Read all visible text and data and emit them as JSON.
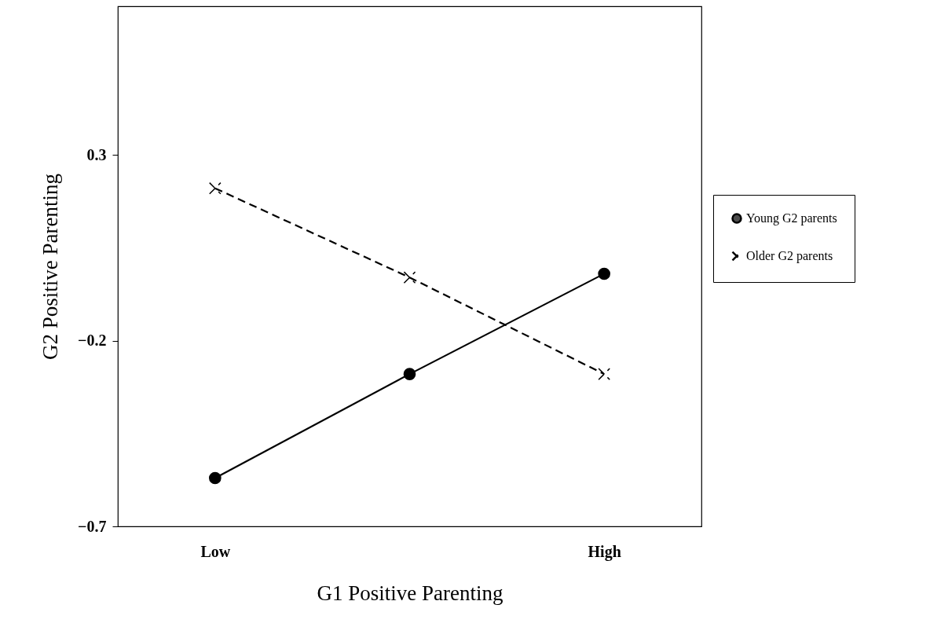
{
  "chart_data": {
    "type": "line",
    "xlabel": "G1 Positive Parenting",
    "ylabel": "G2 Positive Parenting",
    "categories": [
      "Low",
      null,
      "High"
    ],
    "ylim": [
      -0.7,
      0.7
    ],
    "yticks": [
      -0.7,
      -0.2,
      0.3
    ],
    "grid": false,
    "legend": "right",
    "series": [
      {
        "name": "Young G2 parents",
        "color": "#000000",
        "values": [
          -0.57,
          -0.29,
          -0.02
        ],
        "marker": "circle",
        "line_style": "solid"
      },
      {
        "name": "Older G2 parents",
        "color": "#000000",
        "values": [
          0.21,
          -0.03,
          -0.29
        ],
        "marker": "cross",
        "line_style": "dashed"
      }
    ]
  }
}
